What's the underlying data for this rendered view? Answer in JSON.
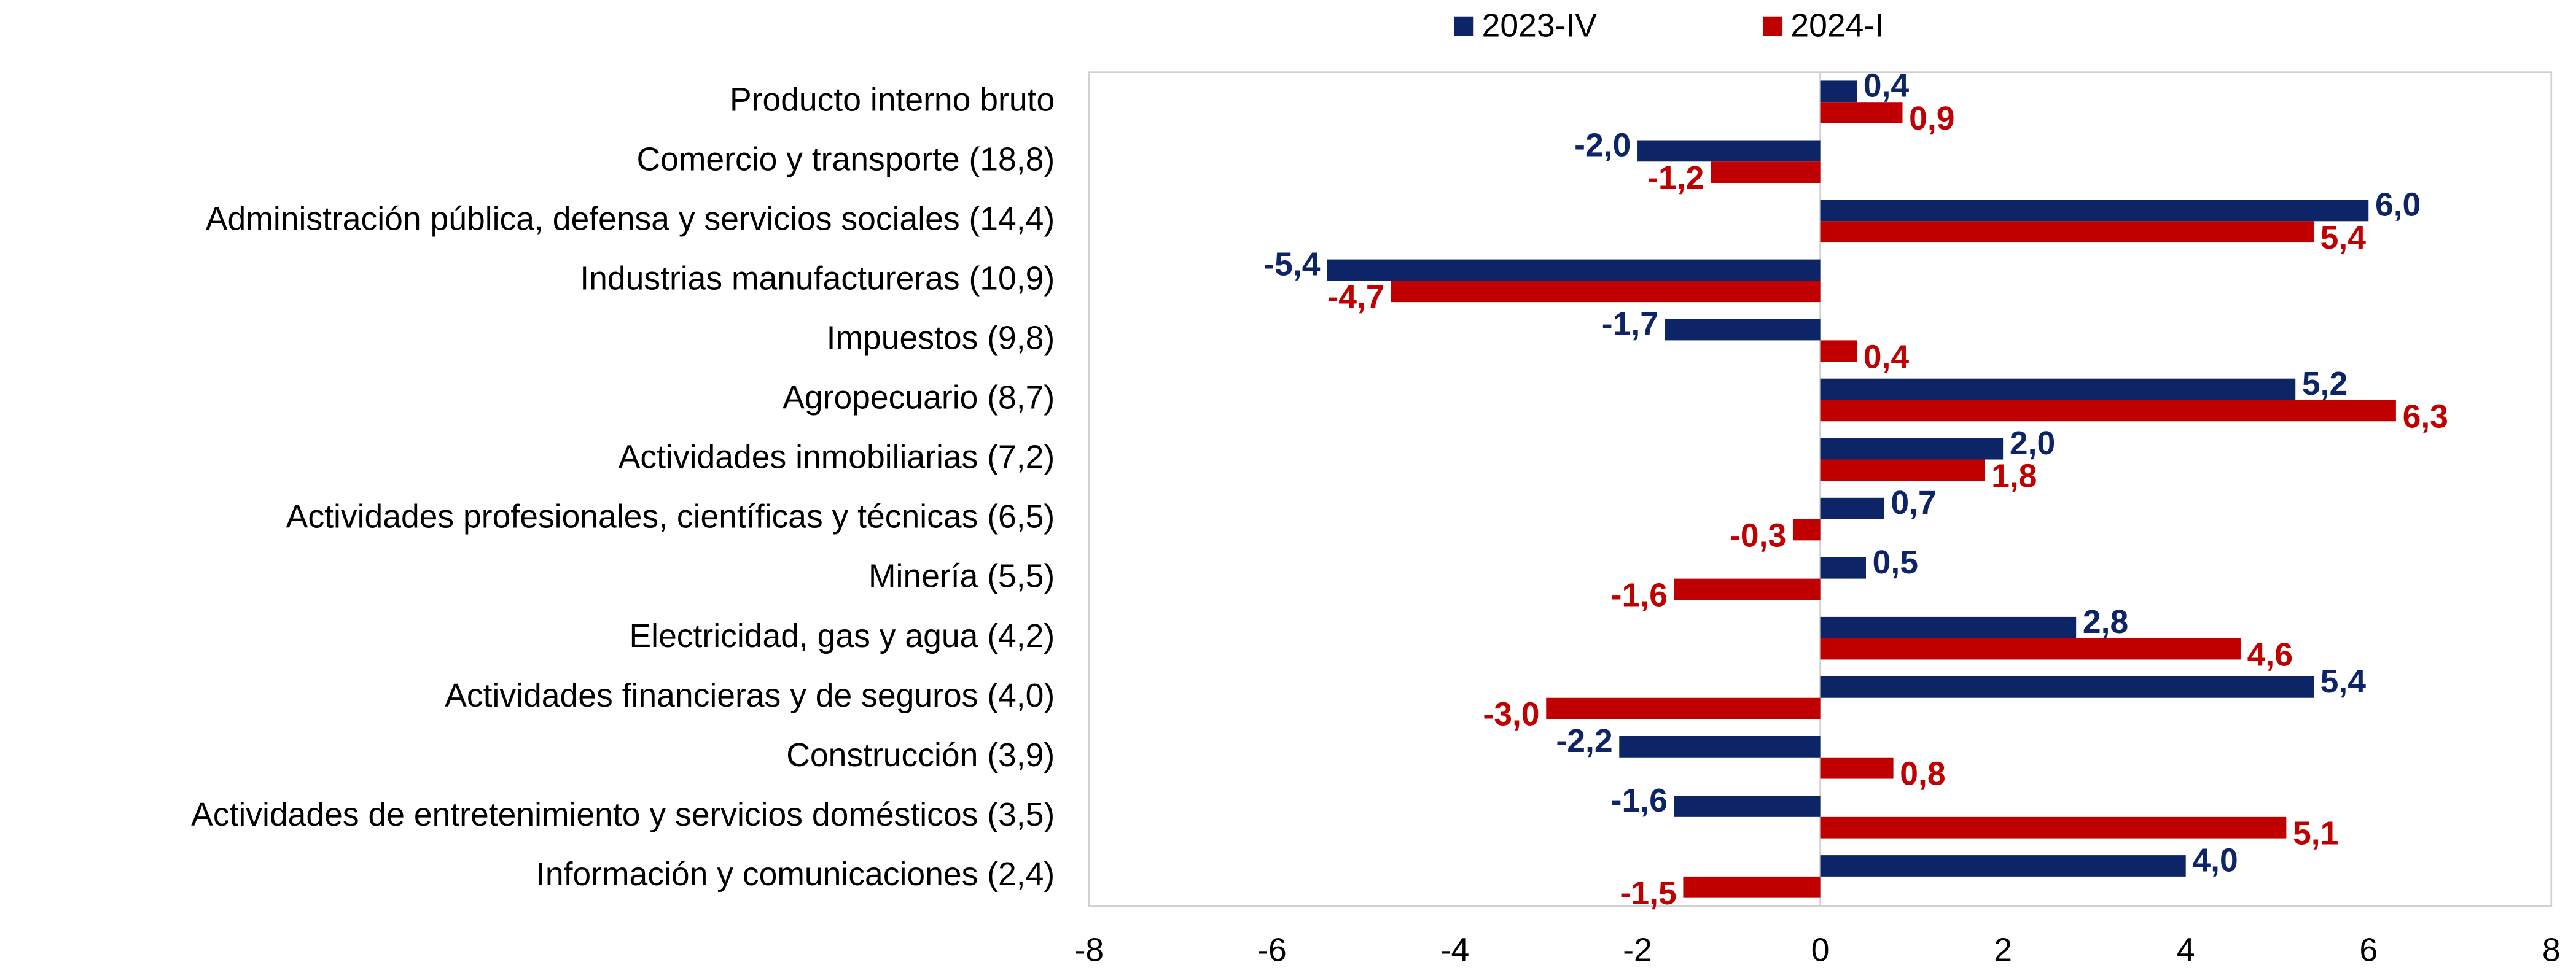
{
  "chart_data": {
    "type": "hbar",
    "categories": [
      "Producto interno bruto",
      "Comercio y transporte (18,8)",
      "Administración pública, defensa y servicios sociales (14,4)",
      "Industrias manufactureras (10,9)",
      "Impuestos (9,8)",
      "Agropecuario (8,7)",
      "Actividades inmobiliarias (7,2)",
      "Actividades profesionales, científicas y técnicas (6,5)",
      "Minería (5,5)",
      "Electricidad, gas y agua (4,2)",
      "Actividades financieras y de seguros (4,0)",
      "Construcción (3,9)",
      "Actividades de entretenimiento y servicios domésticos (3,5)",
      "Información y comunicaciones (2,4)"
    ],
    "series": [
      {
        "name": "2023-IV",
        "color": "#0d2566",
        "values": [
          0.4,
          -2.0,
          6.0,
          -5.4,
          -1.7,
          5.2,
          2.0,
          0.7,
          0.5,
          2.8,
          5.4,
          -2.2,
          -1.6,
          4.0
        ],
        "value_labels": [
          "0,4",
          "-2,0",
          "6,0",
          "-5,4",
          "-1,7",
          "5,2",
          "2,0",
          "0,7",
          "0,5",
          "2,8",
          "5,4",
          "-2,2",
          "-1,6",
          "4,0"
        ]
      },
      {
        "name": "2024-I",
        "color": "#c00000",
        "values": [
          0.9,
          -1.2,
          5.4,
          -4.7,
          0.4,
          6.3,
          1.8,
          -0.3,
          -1.6,
          4.6,
          -3.0,
          0.8,
          5.1,
          -1.5
        ],
        "value_labels": [
          "0,9",
          "-1,2",
          "5,4",
          "-4,7",
          "0,4",
          "6,3",
          "1,8",
          "-0,3",
          "-1,6",
          "4,6",
          "-3,0",
          "0,8",
          "5,1",
          "-1,5"
        ]
      }
    ],
    "xlim": [
      -8,
      8
    ],
    "xticks": [
      -8,
      -6,
      -4,
      -2,
      0,
      2,
      4,
      6,
      8
    ]
  }
}
